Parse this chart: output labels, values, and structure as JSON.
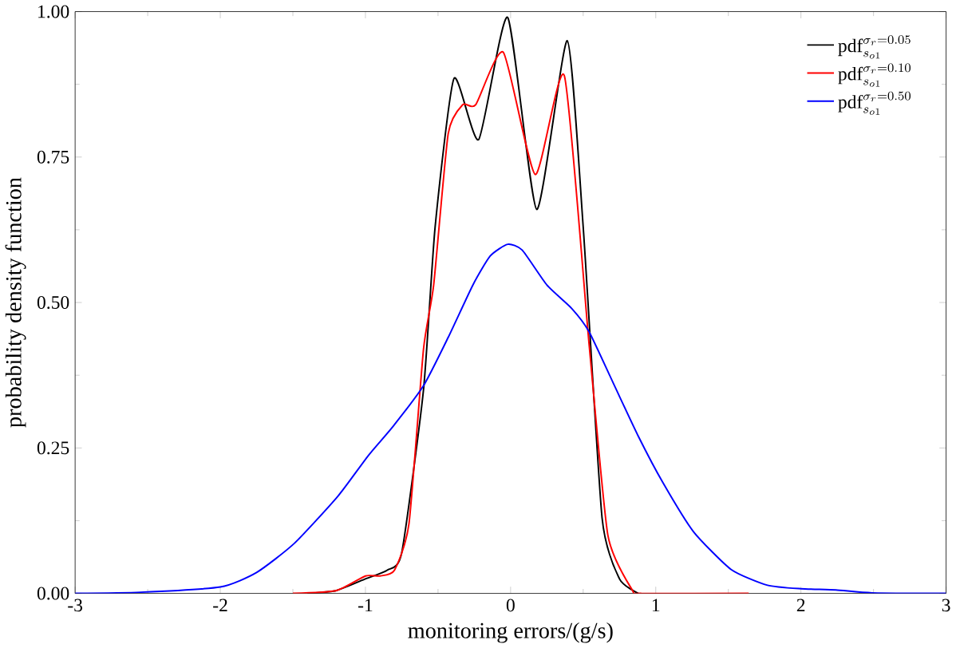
{
  "chart_data": {
    "type": "line",
    "xlabel": "monitoring errors/(g/s)",
    "ylabel": "probability density function",
    "xlim": [
      -3,
      3
    ],
    "ylim": [
      0,
      1
    ],
    "xticks": [
      -3,
      -2,
      -1,
      0,
      1,
      2,
      3
    ],
    "yticks": [
      {
        "value": 0,
        "label": "0.00"
      },
      {
        "value": 0.25,
        "label": "0.25"
      },
      {
        "value": 0.5,
        "label": "0.50"
      },
      {
        "value": 0.75,
        "label": "0.75"
      },
      {
        "value": 1,
        "label": "1.00"
      }
    ],
    "grid": false,
    "legend": "top right",
    "line_style": "solid",
    "marker": "none",
    "series": [
      {
        "name": "\\mathrm{pdf}_{s_{o1}}^{\\sigma_r=0.05}",
        "color": "#000000",
        "x": [
          -1.4,
          -1.2,
          -1.0,
          -0.85,
          -0.75,
          -0.6,
          -0.52,
          -0.39,
          -0.22,
          -0.02,
          0.18,
          0.39,
          0.5,
          0.63,
          0.75,
          0.88
        ],
        "values": [
          0,
          0.005,
          0.025,
          0.04,
          0.07,
          0.35,
          0.63,
          0.885,
          0.78,
          0.99,
          0.66,
          0.95,
          0.63,
          0.13,
          0.025,
          0
        ]
      },
      {
        "name": "\\mathrm{pdf}_{s_{o1}}^{\\sigma_r=0.10}",
        "color": "#ff0000",
        "x": [
          -1.5,
          -1.2,
          -1.0,
          -0.9,
          -0.8,
          -0.7,
          -0.6,
          -0.53,
          -0.43,
          -0.33,
          -0.24,
          -0.05,
          0.17,
          0.37,
          0.54,
          0.67,
          0.84,
          0.9,
          1.64
        ],
        "values": [
          0,
          0.005,
          0.03,
          0.03,
          0.04,
          0.12,
          0.42,
          0.53,
          0.79,
          0.84,
          0.84,
          0.93,
          0.72,
          0.89,
          0.43,
          0.1,
          0.005,
          0,
          0
        ]
      },
      {
        "name": "\\mathrm{pdf}_{s_{o1}}^{\\sigma_r=0.50}",
        "color": "#0000ff",
        "x": [
          -3,
          -2.55,
          -2.0,
          -1.75,
          -1.49,
          -1.19,
          -0.98,
          -0.81,
          -0.6,
          -0.43,
          -0.26,
          -0.14,
          -0.02,
          0.08,
          0.25,
          0.42,
          0.54,
          0.71,
          0.88,
          1.05,
          1.26,
          1.52,
          1.77,
          2.0,
          2.24,
          2.49,
          3
        ],
        "values": [
          0,
          0.002,
          0.011,
          0.036,
          0.086,
          0.167,
          0.237,
          0.287,
          0.357,
          0.44,
          0.53,
          0.58,
          0.6,
          0.59,
          0.53,
          0.49,
          0.45,
          0.36,
          0.27,
          0.19,
          0.106,
          0.041,
          0.014,
          0.008,
          0.006,
          0.001,
          0
        ]
      }
    ]
  }
}
